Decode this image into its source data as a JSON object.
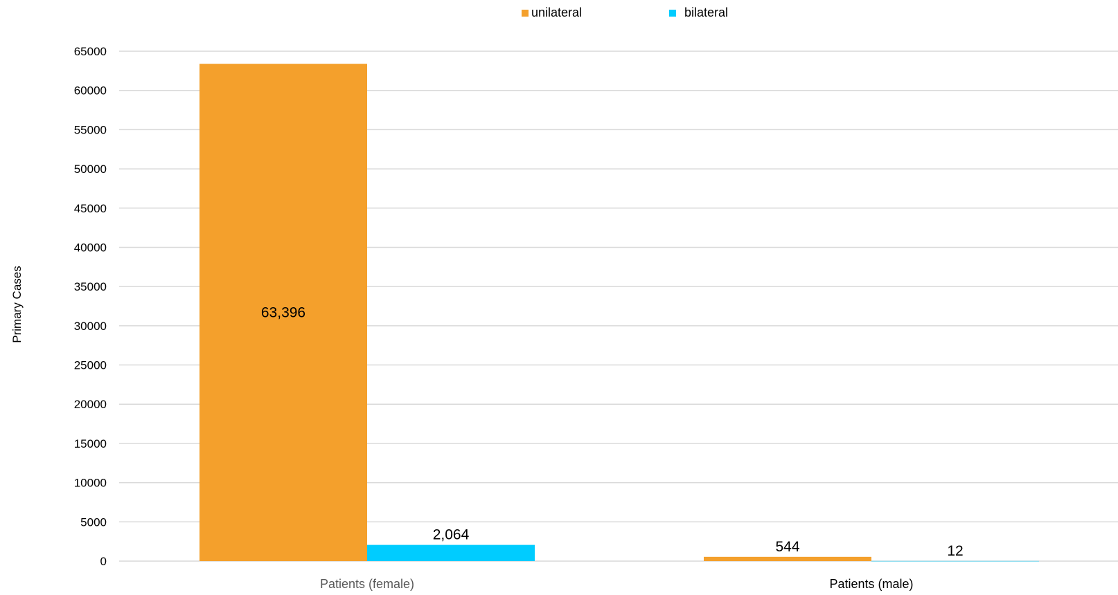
{
  "chart_data": {
    "type": "bar",
    "categories": [
      "Patients (female)",
      "Patients (male)"
    ],
    "series": [
      {
        "name": "unilateral",
        "values": [
          63396,
          544
        ],
        "labels": [
          "63,396",
          "544"
        ],
        "color": "#F4A02C"
      },
      {
        "name": "bilateral",
        "values": [
          2064,
          12
        ],
        "labels": [
          "2,064",
          "12"
        ],
        "color": "#00CCFF"
      }
    ],
    "title": "",
    "xlabel": "",
    "ylabel": "Primary Cases",
    "ylim": [
      0,
      65000
    ],
    "yticks": [
      "0",
      "5000",
      "10000",
      "15000",
      "20000",
      "25000",
      "30000",
      "35000",
      "40000",
      "45000",
      "50000",
      "55000",
      "60000",
      "65000"
    ],
    "grid": true,
    "legend": "top-center"
  }
}
